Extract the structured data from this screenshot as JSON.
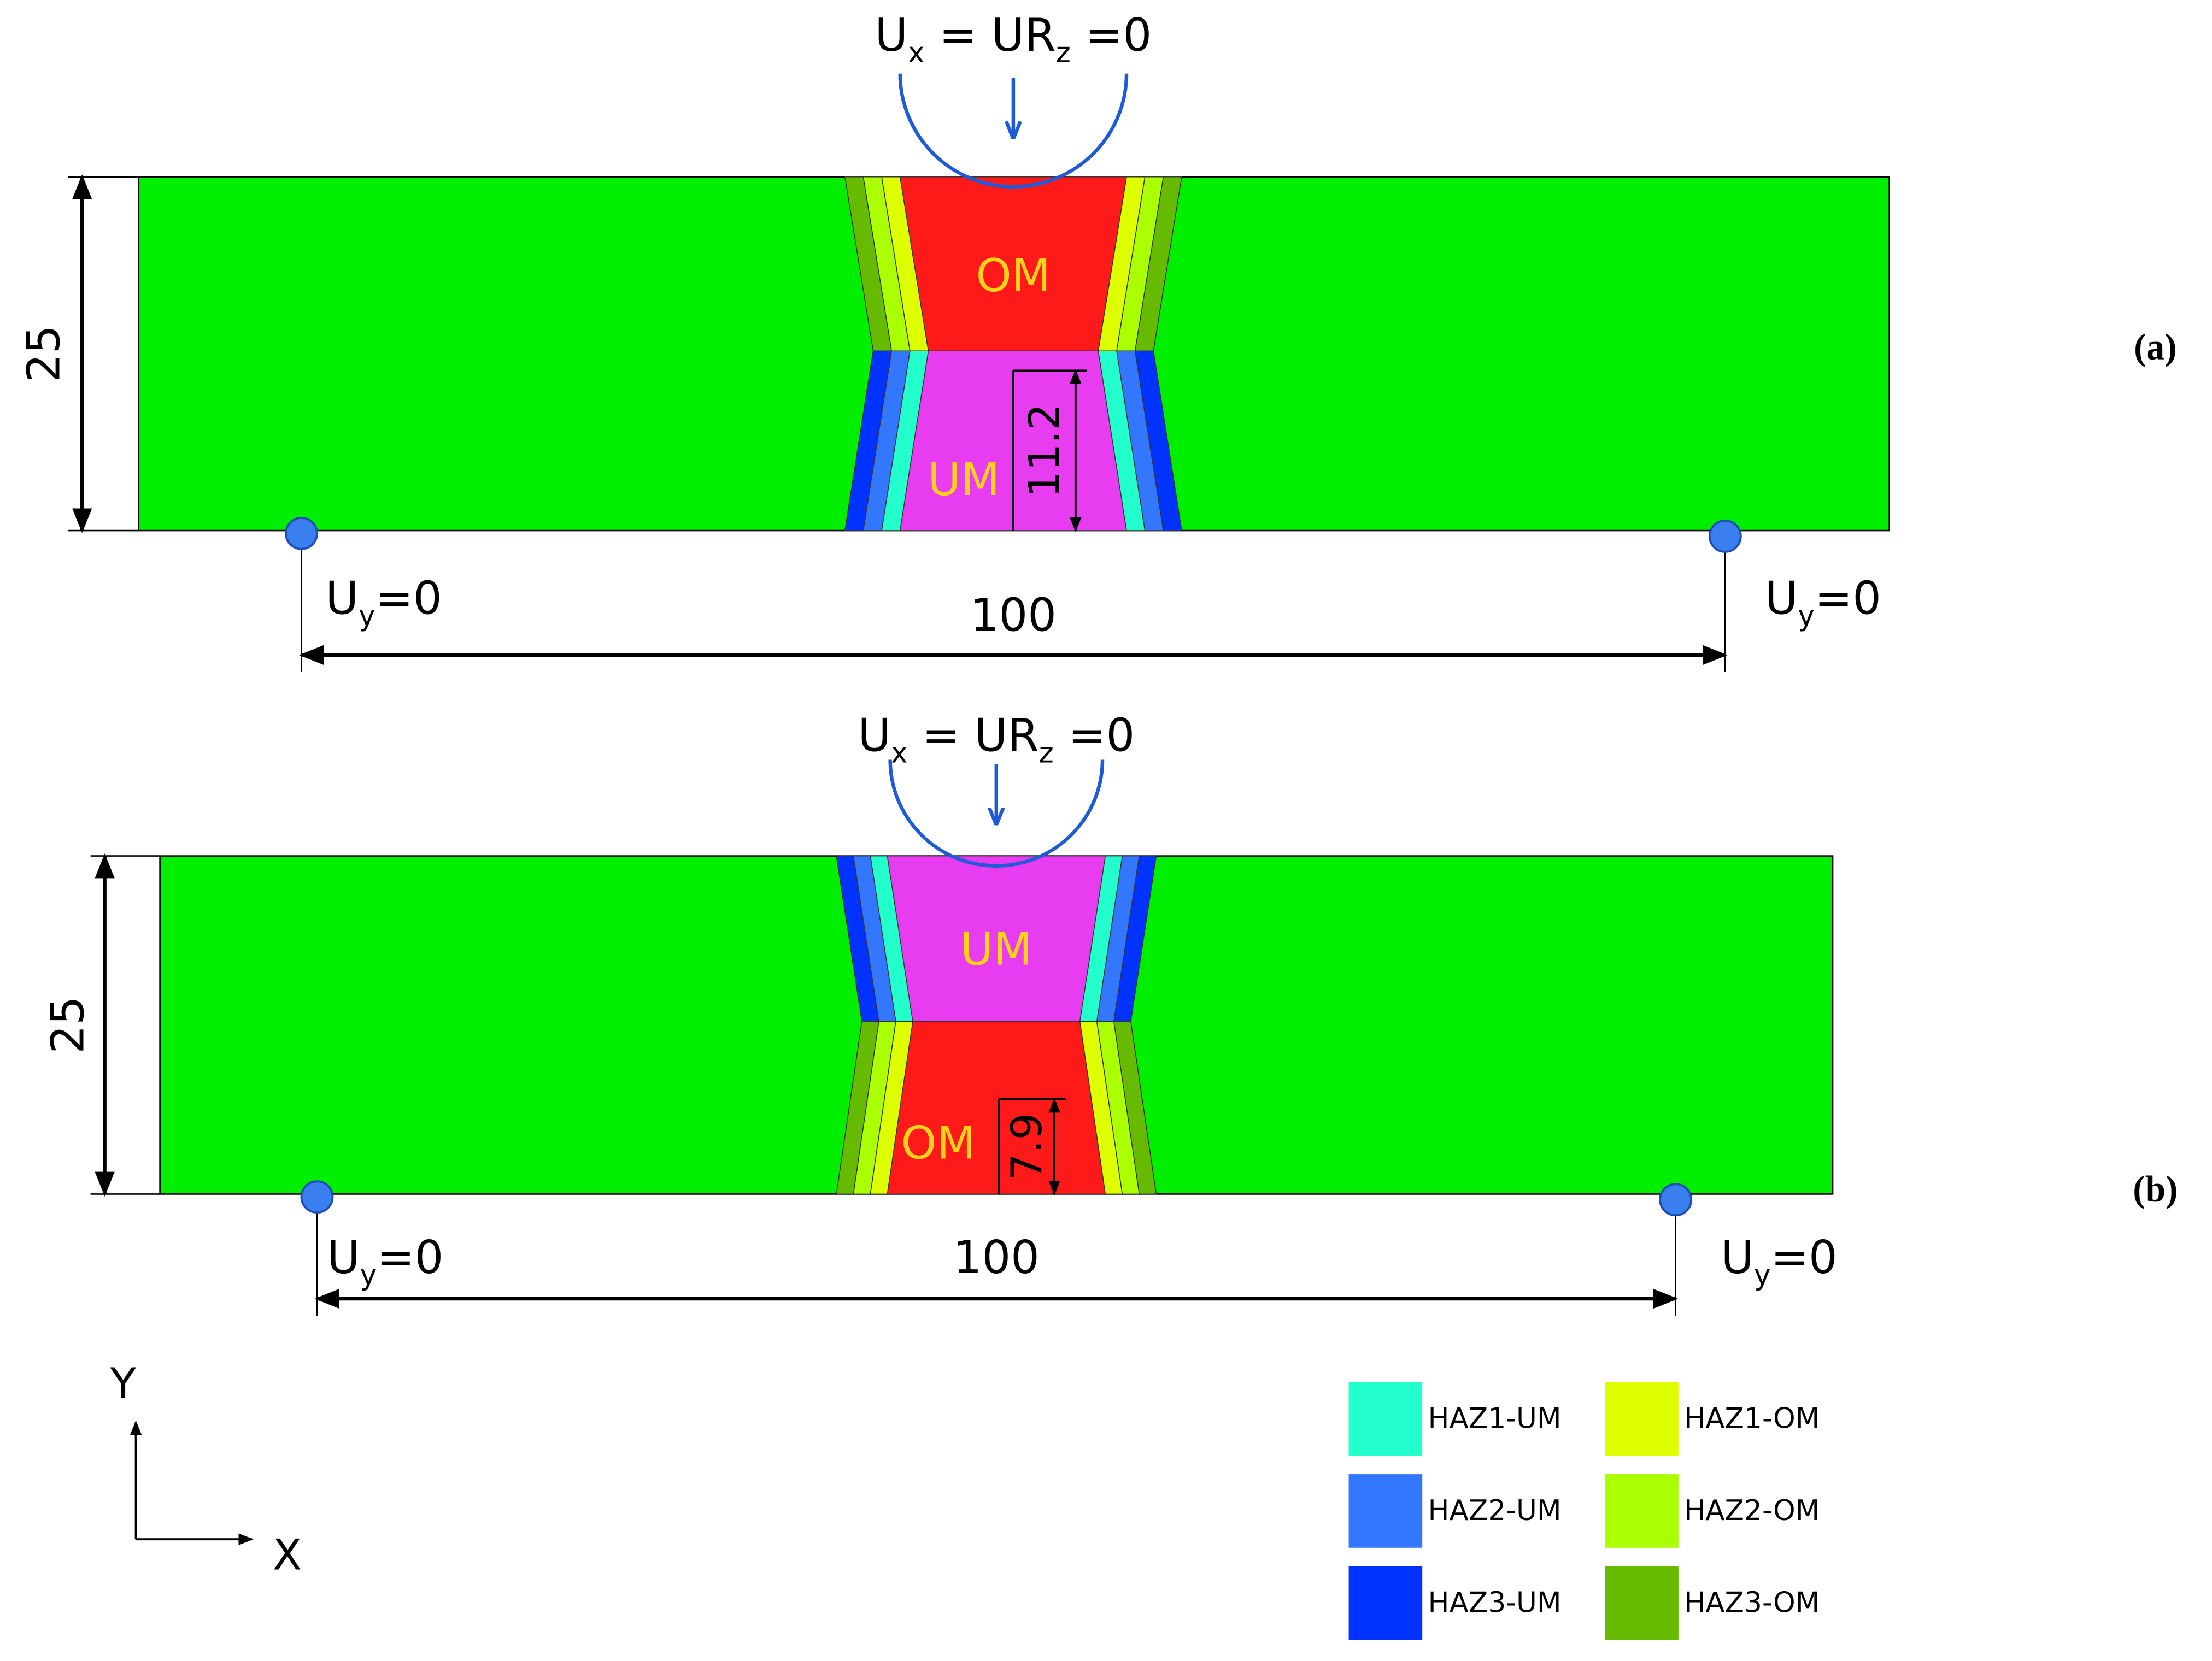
{
  "panels": [
    {
      "label": "(a)",
      "load": [
        "U",
        "x",
        " = UR",
        "z",
        " =0"
      ],
      "height": 25,
      "span": 100,
      "top_region": "OM",
      "bottom_region": "UM",
      "dimension": 11.2,
      "support_left": [
        "U",
        "y",
        "=0"
      ],
      "support_right": [
        "U",
        "y",
        "=0"
      ]
    },
    {
      "label": "(b)",
      "load": [
        "U",
        "x",
        " = UR",
        "z",
        " =0"
      ],
      "height": 25,
      "span": 100,
      "top_region": "UM",
      "bottom_region": "OM",
      "dimension": 7.9,
      "support_left": [
        "U",
        "y",
        "=0"
      ],
      "support_right": [
        "U",
        "y",
        "=0"
      ]
    }
  ],
  "axes": {
    "y": "Y",
    "x": "X"
  },
  "legend": [
    {
      "label": "HAZ1-UM",
      "color": "#22ffcc"
    },
    {
      "label": "HAZ1-OM",
      "color": "#ddff00"
    },
    {
      "label": "HAZ2-UM",
      "color": "#3377ff"
    },
    {
      "label": "HAZ2-OM",
      "color": "#aaff00"
    },
    {
      "label": "HAZ3-UM",
      "color": "#0033ff"
    },
    {
      "label": "HAZ3-OM",
      "color": "#66bb00"
    }
  ]
}
